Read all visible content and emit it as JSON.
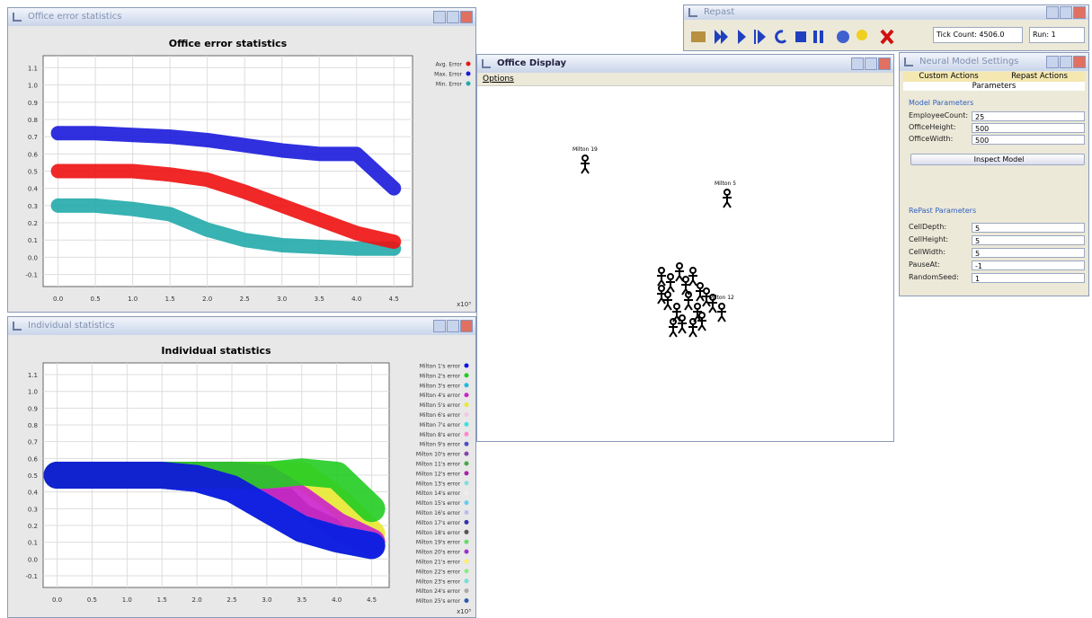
{
  "error_window": {
    "title": "Office error statistics",
    "chart_data": {
      "type": "scatter",
      "title": "Office error statistics",
      "x": [
        0,
        0.5,
        1,
        1.5,
        2,
        2.5,
        3,
        3.5,
        4,
        4.5
      ],
      "series": [
        {
          "name": "Avg. Error",
          "color": "#ee1111",
          "values": [
            0.5,
            0.5,
            0.5,
            0.48,
            0.45,
            0.38,
            0.3,
            0.22,
            0.14,
            0.09
          ]
        },
        {
          "name": "Max. Error",
          "color": "#1a1adb",
          "values": [
            0.72,
            0.72,
            0.71,
            0.7,
            0.68,
            0.65,
            0.62,
            0.6,
            0.6,
            0.4
          ]
        },
        {
          "name": "Min. Error",
          "color": "#22aaaa",
          "values": [
            0.3,
            0.3,
            0.28,
            0.25,
            0.16,
            0.1,
            0.07,
            0.06,
            0.05,
            0.05
          ]
        }
      ],
      "xlim": [
        -0.2,
        4.75
      ],
      "ylim": [
        -0.17,
        1.17
      ],
      "xticks": [
        {
          "value": 0,
          "label": "0.0"
        },
        0.5,
        {
          "value": 1,
          "label": "1.0"
        },
        1.5,
        {
          "value": 2,
          "label": "2.0"
        },
        2.5,
        {
          "value": 3,
          "label": "3.0"
        },
        3.5,
        {
          "value": 4,
          "label": "4.0"
        },
        4.5
      ],
      "yticks": [
        -0.1,
        {
          "value": 0,
          "label": "0.0"
        },
        0.1,
        0.2,
        0.3,
        0.4,
        0.5,
        0.6,
        0.7,
        0.8,
        0.9,
        {
          "value": 1,
          "label": "1.0"
        },
        1.1
      ],
      "x_multiplier": "x10³",
      "grid": true
    }
  },
  "individual_window": {
    "title": "Individual statistics",
    "chart_data": {
      "type": "scatter",
      "title": "Individual statistics",
      "x": [
        0,
        0.5,
        1,
        1.5,
        2,
        2.5,
        3,
        3.5,
        4,
        4.5
      ],
      "series": [
        {
          "name": "Milton 1's error",
          "color": "#1010e0",
          "values": [
            0.5,
            0.5,
            0.5,
            0.5,
            0.48,
            0.42,
            0.3,
            0.18,
            0.12,
            0.08
          ]
        },
        {
          "name": "Milton 2's error",
          "color": "#22cc22",
          "values": [
            0.5,
            0.5,
            0.5,
            0.5,
            0.5,
            0.5,
            0.5,
            0.52,
            0.5,
            0.3
          ]
        },
        {
          "name": "Milton 3's error",
          "color": "#22bbdd",
          "values": [
            0.5,
            0.5,
            0.5,
            0.5,
            0.48,
            0.42,
            0.3,
            0.18,
            0.12,
            0.08
          ]
        },
        {
          "name": "Milton 4's error",
          "color": "#cc22cc",
          "values": [
            0.5,
            0.5,
            0.5,
            0.5,
            0.5,
            0.5,
            0.48,
            0.35,
            0.2,
            0.1
          ]
        },
        {
          "name": "Milton 5's error",
          "color": "#e8e830",
          "values": [
            0.5,
            0.5,
            0.5,
            0.5,
            0.5,
            0.5,
            0.5,
            0.5,
            0.35,
            0.15
          ]
        },
        {
          "name": "Milton 6's error",
          "color": "#f0c8e0",
          "values": [
            0.5,
            0.5,
            0.5,
            0.5,
            0.48,
            0.42,
            0.3,
            0.18,
            0.12,
            0.08
          ]
        },
        {
          "name": "Milton 7's error",
          "color": "#40e0e0",
          "values": [
            0.5,
            0.5,
            0.5,
            0.5,
            0.48,
            0.42,
            0.3,
            0.18,
            0.12,
            0.08
          ]
        },
        {
          "name": "Milton 8's error",
          "color": "#ff88cc",
          "values": [
            0.5,
            0.5,
            0.5,
            0.5,
            0.48,
            0.42,
            0.3,
            0.18,
            0.12,
            0.08
          ]
        },
        {
          "name": "Milton 9's error",
          "color": "#5050c0",
          "values": [
            0.5,
            0.5,
            0.5,
            0.5,
            0.48,
            0.42,
            0.3,
            0.18,
            0.12,
            0.08
          ]
        },
        {
          "name": "Milton 10's error",
          "color": "#8844aa",
          "values": [
            0.5,
            0.5,
            0.5,
            0.5,
            0.48,
            0.42,
            0.3,
            0.18,
            0.12,
            0.08
          ]
        },
        {
          "name": "Milton 11's error",
          "color": "#44aa44",
          "values": [
            0.5,
            0.5,
            0.5,
            0.5,
            0.48,
            0.42,
            0.3,
            0.18,
            0.12,
            0.08
          ]
        },
        {
          "name": "Milton 12's error",
          "color": "#aa22aa",
          "values": [
            0.5,
            0.5,
            0.5,
            0.5,
            0.48,
            0.42,
            0.3,
            0.18,
            0.12,
            0.08
          ]
        },
        {
          "name": "Milton 13's error",
          "color": "#88dddd",
          "values": [
            0.5,
            0.5,
            0.5,
            0.5,
            0.48,
            0.42,
            0.3,
            0.18,
            0.12,
            0.08
          ]
        },
        {
          "name": "Milton 14's error",
          "color": "#eeeeee",
          "values": [
            0.5,
            0.5,
            0.5,
            0.5,
            0.48,
            0.42,
            0.3,
            0.18,
            0.12,
            0.08
          ]
        },
        {
          "name": "Milton 15's error",
          "color": "#66ccee",
          "values": [
            0.5,
            0.5,
            0.5,
            0.5,
            0.48,
            0.42,
            0.3,
            0.18,
            0.12,
            0.08
          ]
        },
        {
          "name": "Milton 16's error",
          "color": "#bbbbee",
          "values": [
            0.5,
            0.5,
            0.5,
            0.5,
            0.48,
            0.42,
            0.3,
            0.18,
            0.12,
            0.08
          ]
        },
        {
          "name": "Milton 17's error",
          "color": "#3333aa",
          "values": [
            0.5,
            0.5,
            0.5,
            0.5,
            0.48,
            0.42,
            0.3,
            0.18,
            0.12,
            0.08
          ]
        },
        {
          "name": "Milton 18's error",
          "color": "#555555",
          "values": [
            0.5,
            0.5,
            0.5,
            0.5,
            0.5,
            0.5,
            0.45,
            0.25,
            0.15,
            0.1
          ]
        },
        {
          "name": "Milton 19's error",
          "color": "#66dd66",
          "values": [
            0.5,
            0.5,
            0.5,
            0.5,
            0.48,
            0.42,
            0.3,
            0.18,
            0.12,
            0.08
          ]
        },
        {
          "name": "Milton 20's error",
          "color": "#9933cc",
          "values": [
            0.5,
            0.5,
            0.5,
            0.5,
            0.48,
            0.42,
            0.3,
            0.18,
            0.12,
            0.08
          ]
        },
        {
          "name": "Milton 21's error",
          "color": "#ffee66",
          "values": [
            0.5,
            0.5,
            0.5,
            0.5,
            0.48,
            0.42,
            0.3,
            0.18,
            0.12,
            0.08
          ]
        },
        {
          "name": "Milton 22's error",
          "color": "#88ee88",
          "values": [
            0.5,
            0.5,
            0.5,
            0.5,
            0.48,
            0.42,
            0.3,
            0.18,
            0.12,
            0.08
          ]
        },
        {
          "name": "Milton 23's error",
          "color": "#77dddd",
          "values": [
            0.5,
            0.5,
            0.5,
            0.5,
            0.48,
            0.42,
            0.3,
            0.18,
            0.12,
            0.08
          ]
        },
        {
          "name": "Milton 24's error",
          "color": "#aaaaaa",
          "values": [
            0.5,
            0.5,
            0.5,
            0.5,
            0.48,
            0.42,
            0.3,
            0.18,
            0.12,
            0.08
          ]
        },
        {
          "name": "Milton 25's error",
          "color": "#2a5ab0",
          "values": [
            0.5,
            0.5,
            0.5,
            0.5,
            0.48,
            0.42,
            0.3,
            0.18,
            0.12,
            0.08
          ]
        }
      ],
      "xlim": [
        -0.2,
        4.75
      ],
      "ylim": [
        -0.17,
        1.17
      ],
      "xticks": [
        {
          "value": 0,
          "label": "0.0"
        },
        0.5,
        {
          "value": 1,
          "label": "1.0"
        },
        1.5,
        {
          "value": 2,
          "label": "2.0"
        },
        2.5,
        {
          "value": 3,
          "label": "3.0"
        },
        3.5,
        {
          "value": 4,
          "label": "4.0"
        },
        4.5
      ],
      "yticks": [
        -0.1,
        {
          "value": 0,
          "label": "0.0"
        },
        0.1,
        0.2,
        0.3,
        0.4,
        0.5,
        0.6,
        0.7,
        0.8,
        0.9,
        {
          "value": 1,
          "label": "1.0"
        },
        1.1
      ],
      "x_multiplier": "x10³",
      "grid": true
    }
  },
  "office_display": {
    "title": "Office Display",
    "menu": "Options",
    "agents": [
      "Milton 19",
      "Milton 5",
      "Milton 12"
    ]
  },
  "repast": {
    "title": "Repast",
    "tick_count": "Tick Count: 4506.0",
    "run": "Run: 1"
  },
  "settings": {
    "title": "Neural Model Settings",
    "tabs": [
      "Custom Actions",
      "Repast Actions"
    ],
    "active_tab": "Parameters",
    "model_section": "Model Parameters",
    "model_params": [
      [
        "EmployeeCount:",
        "25"
      ],
      [
        "OfficeHeight:",
        "500"
      ],
      [
        "OfficeWidth:",
        "500"
      ]
    ],
    "button": "Inspect Model",
    "repast_section": "RePast Parameters",
    "repast_params": [
      [
        "CellDepth:",
        "5"
      ],
      [
        "CellHeight:",
        "5"
      ],
      [
        "CellWidth:",
        "5"
      ],
      [
        "PauseAt:",
        "-1"
      ],
      [
        "RandomSeed:",
        "1"
      ]
    ]
  }
}
